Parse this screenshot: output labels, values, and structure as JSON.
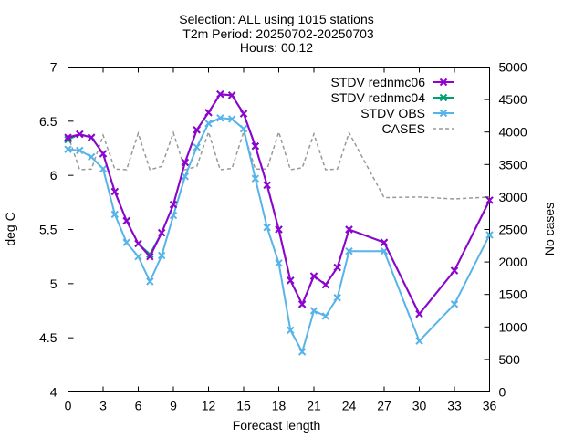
{
  "title": [
    "Selection: ALL using  1015 stations",
    "T2m   Period: 20250702-20250703",
    "Hours: 00,12"
  ],
  "chart_data": {
    "type": "line",
    "xlabel": "Forecast length",
    "ylabel": "deg C",
    "y2label": "No cases",
    "xlim": [
      0,
      36
    ],
    "ylim": [
      4,
      7
    ],
    "y2lim": [
      0,
      5000
    ],
    "grid": false,
    "legend_position": "top-right",
    "xticks": [
      "0",
      "3",
      "6",
      "9",
      "12",
      "15",
      "18",
      "21",
      "24",
      "27",
      "30",
      "33",
      "36"
    ],
    "yticks": [
      "4",
      "4.5",
      "5",
      "5.5",
      "6",
      "6.5",
      "7"
    ],
    "y2ticks": [
      "0",
      "500",
      "1000",
      "1500",
      "2000",
      "2500",
      "3000",
      "3500",
      "4000",
      "4500",
      "5000"
    ],
    "series": [
      {
        "name": "STDV rednmc06",
        "axis": "y",
        "color": "#9400d3",
        "marker": "x",
        "x": [
          0,
          1,
          2,
          3,
          4,
          5,
          6,
          7,
          8,
          9,
          10,
          11,
          12,
          13,
          14,
          15,
          16,
          17,
          18,
          19,
          20,
          21,
          22,
          23,
          24,
          27,
          30,
          33,
          36
        ],
        "y": [
          6.35,
          6.38,
          6.35,
          6.2,
          5.85,
          5.58,
          5.37,
          5.25,
          5.47,
          5.73,
          6.12,
          6.42,
          6.58,
          6.75,
          6.74,
          6.57,
          6.27,
          5.91,
          5.5,
          5.03,
          4.81,
          5.07,
          4.99,
          5.15,
          5.5,
          5.38,
          4.72,
          5.12,
          5.77
        ]
      },
      {
        "name": "STDV rednmc04",
        "axis": "y",
        "color": "#009e73",
        "marker": "x",
        "x": [
          0,
          1,
          2,
          3,
          4,
          5,
          6,
          7,
          8,
          9,
          10,
          11,
          12,
          13,
          14,
          15,
          16,
          17,
          18,
          19,
          20,
          21,
          22,
          23,
          24,
          27,
          30,
          33,
          36
        ],
        "y": [
          6.33,
          6.38,
          6.35,
          6.2,
          5.85,
          5.58,
          5.37,
          5.27,
          5.47,
          5.73,
          6.12,
          6.42,
          6.58,
          6.75,
          6.74,
          6.57,
          6.27,
          5.91,
          5.5,
          5.03,
          4.81,
          5.07,
          4.99,
          5.15,
          5.5,
          5.38,
          4.72,
          5.12,
          5.77
        ]
      },
      {
        "name": "STDV OBS",
        "axis": "y",
        "color": "#56b4e9",
        "marker": "x",
        "x": [
          0,
          1,
          2,
          3,
          4,
          5,
          6,
          7,
          8,
          9,
          10,
          11,
          12,
          13,
          14,
          15,
          16,
          17,
          18,
          19,
          20,
          21,
          22,
          23,
          24,
          27,
          30,
          33,
          36
        ],
        "y": [
          6.24,
          6.23,
          6.17,
          6.06,
          5.64,
          5.38,
          5.25,
          5.02,
          5.26,
          5.63,
          5.99,
          6.26,
          6.48,
          6.53,
          6.52,
          6.43,
          5.97,
          5.52,
          5.19,
          4.57,
          4.37,
          4.75,
          4.7,
          4.87,
          5.3,
          5.3,
          4.47,
          4.81,
          5.45
        ]
      },
      {
        "name": "CASES",
        "axis": "y2",
        "color": "#999999",
        "dash": true,
        "x": [
          0,
          1,
          2,
          3,
          4,
          5,
          6,
          7,
          8,
          9,
          10,
          11,
          12,
          13,
          14,
          15,
          16,
          17,
          18,
          19,
          20,
          21,
          22,
          23,
          24,
          27,
          30,
          33,
          36
        ],
        "y": [
          3950,
          3420,
          3430,
          3950,
          3430,
          3420,
          3980,
          3420,
          3470,
          3990,
          3420,
          3470,
          4000,
          3420,
          3440,
          4000,
          3430,
          3430,
          4000,
          3420,
          3450,
          3970,
          3420,
          3430,
          3990,
          2990,
          3000,
          2970,
          3000
        ]
      }
    ]
  }
}
